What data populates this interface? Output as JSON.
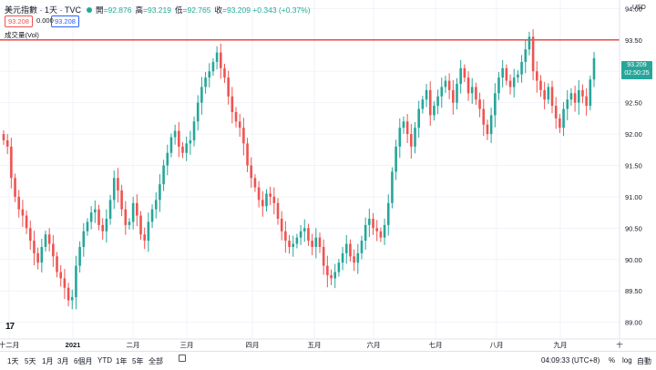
{
  "header": {
    "symbol": "美元指數 · 1天 · TVC",
    "open_label": "開",
    "open": "=92.876",
    "high_label": "高",
    "high": "=93.219",
    "low_label": "低",
    "low": "=92.765",
    "close_label": "收",
    "close": "=93.209 +0.343 (+0.37%)"
  },
  "quote": {
    "bid": "93.208",
    "spread": "0.000",
    "ask": "93.208"
  },
  "volume_label": "成交量(Vol)",
  "currency": "USD",
  "last_label": {
    "price": "93.209",
    "countdown": "02:50:25"
  },
  "bottom": {
    "ranges": [
      "1天",
      "5天",
      "1月",
      "3月",
      "6個月",
      "YTD",
      "1年",
      "5年",
      "全部"
    ],
    "time": "04:09:33 (UTC+8)",
    "percent": "%",
    "log": "log",
    "auto": "自動"
  },
  "colors": {
    "up": "#26a69a",
    "down": "#ef5350",
    "hline": "#e53935"
  },
  "chart_data": {
    "type": "candlestick",
    "ylim": [
      88.8,
      94.2
    ],
    "yticks": [
      "89.00",
      "89.50",
      "90.00",
      "90.50",
      "91.00",
      "91.50",
      "92.00",
      "92.50",
      "93.00",
      "93.50",
      "94.00"
    ],
    "xticks": [
      "十二月",
      "2021",
      "二月",
      "三月",
      "四月",
      "五月",
      "六月",
      "七月",
      "八月",
      "九月",
      "十"
    ],
    "horizontal_line": 93.5,
    "closes": [
      91.9,
      91.8,
      91.3,
      91.0,
      90.8,
      90.7,
      90.5,
      90.3,
      90.1,
      89.95,
      90.2,
      90.4,
      90.25,
      90.05,
      89.8,
      89.7,
      89.55,
      89.35,
      89.4,
      89.9,
      90.2,
      90.45,
      90.6,
      90.75,
      90.8,
      90.55,
      90.45,
      90.65,
      90.95,
      91.3,
      91.1,
      90.8,
      90.55,
      90.6,
      90.9,
      90.7,
      90.4,
      90.3,
      90.6,
      90.8,
      90.95,
      91.2,
      91.5,
      91.7,
      91.95,
      92.05,
      91.8,
      91.7,
      91.85,
      91.9,
      92.2,
      92.5,
      92.75,
      92.9,
      93.0,
      93.15,
      93.3,
      93.05,
      92.9,
      92.6,
      92.35,
      92.2,
      92.1,
      91.85,
      91.5,
      91.3,
      91.15,
      90.95,
      90.85,
      91.05,
      91.0,
      90.9,
      90.65,
      90.45,
      90.3,
      90.2,
      90.25,
      90.35,
      90.45,
      90.5,
      90.3,
      90.2,
      90.35,
      90.2,
      89.9,
      89.75,
      89.7,
      89.8,
      89.95,
      90.1,
      90.25,
      90.05,
      89.95,
      90.1,
      90.3,
      90.55,
      90.65,
      90.5,
      90.45,
      90.35,
      90.55,
      90.9,
      91.4,
      91.8,
      92.1,
      92.2,
      92.0,
      91.8,
      92.1,
      92.4,
      92.55,
      92.7,
      92.3,
      92.45,
      92.6,
      92.75,
      92.85,
      92.7,
      92.5,
      92.8,
      93.05,
      92.9,
      92.65,
      92.75,
      92.55,
      92.4,
      92.15,
      92.0,
      92.3,
      92.65,
      92.9,
      93.05,
      92.85,
      92.75,
      92.9,
      92.95,
      93.15,
      93.35,
      93.55,
      93.0,
      92.85,
      92.7,
      92.55,
      92.75,
      92.45,
      92.25,
      92.1,
      92.4,
      92.55,
      92.65,
      92.5,
      92.7,
      92.6,
      92.45,
      92.87,
      93.209
    ]
  }
}
